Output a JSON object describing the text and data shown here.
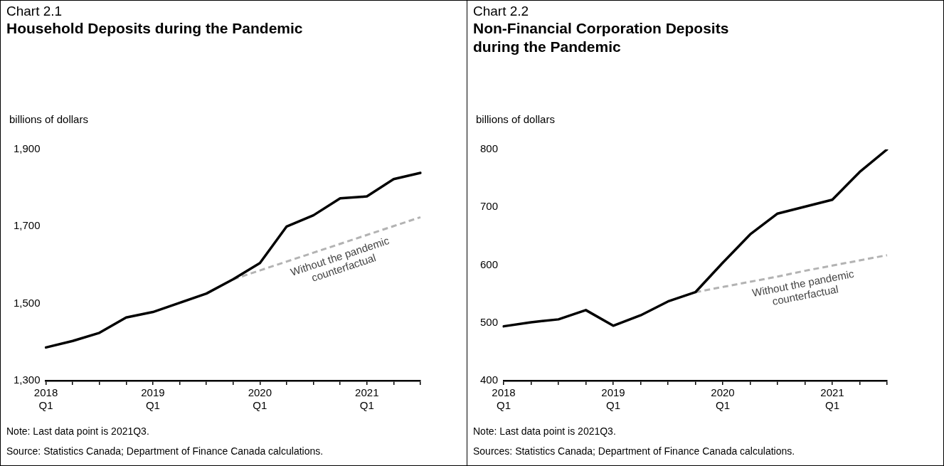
{
  "chart_data": [
    {
      "type": "line",
      "subtitle": "Chart 2.1",
      "title": "Household Deposits during the Pandemic",
      "ylabel": "billions of dollars",
      "categories": [
        "2018\nQ1",
        null,
        null,
        null,
        "2019\nQ1",
        null,
        null,
        null,
        "2020\nQ1",
        null,
        null,
        null,
        "2021\nQ1",
        null,
        null
      ],
      "series": [
        {
          "color": "#000000",
          "line_style": "solid",
          "values": [
            1386,
            1403,
            1424,
            1464,
            1478,
            1502,
            1526,
            1563,
            1605,
            1700,
            1729,
            1773,
            1778,
            1823,
            1839
          ]
        },
        {
          "name": "Without the pandemic counterfactual",
          "color": "#b3b3b3",
          "line_style": "dashed",
          "values": [
            null,
            null,
            null,
            null,
            null,
            null,
            null,
            1563,
            1586,
            1609,
            1632,
            1655,
            1678,
            1701,
            1724
          ]
        }
      ],
      "ylim": [
        1300,
        1900
      ],
      "yticks": [
        {
          "value": 1300,
          "label": "1,300"
        },
        {
          "value": 1500,
          "label": "1,500"
        },
        {
          "value": 1700,
          "label": "1,700"
        },
        {
          "value": 1900,
          "label": "1,900"
        }
      ],
      "grid": false,
      "legend": false,
      "marker": "none",
      "annotations": [
        "Note: Last data point is 2021Q3.",
        "Source: Statistics Canada; Department of Finance Canada calculations."
      ]
    },
    {
      "type": "line",
      "subtitle": "Chart 2.2",
      "title": "Non-Financial Corporation Deposits during the Pandemic",
      "ylabel": "billions of dollars",
      "categories": [
        "2018\nQ1",
        null,
        null,
        null,
        "2019\nQ1",
        null,
        null,
        null,
        "2020\nQ1",
        null,
        null,
        null,
        "2021\nQ1",
        null,
        null
      ],
      "series": [
        {
          "color": "#000000",
          "line_style": "solid",
          "values": [
            494,
            501,
            506,
            522,
            495,
            513,
            537,
            553,
            604,
            653,
            689,
            701,
            713,
            761,
            800
          ]
        },
        {
          "name": "Without the pandemic counterfactual",
          "color": "#b3b3b3",
          "line_style": "dashed",
          "values": [
            null,
            null,
            null,
            null,
            null,
            null,
            null,
            553,
            562,
            571,
            580,
            590,
            599,
            608,
            617
          ]
        }
      ],
      "ylim": [
        400,
        800
      ],
      "yticks": [
        400,
        500,
        600,
        700,
        800
      ],
      "grid": false,
      "legend": false,
      "marker": "none",
      "annotations": [
        "Note: Last data point is 2021Q3.",
        "Sources: Statistics Canada; Department of Finance Canada calculations."
      ]
    }
  ]
}
